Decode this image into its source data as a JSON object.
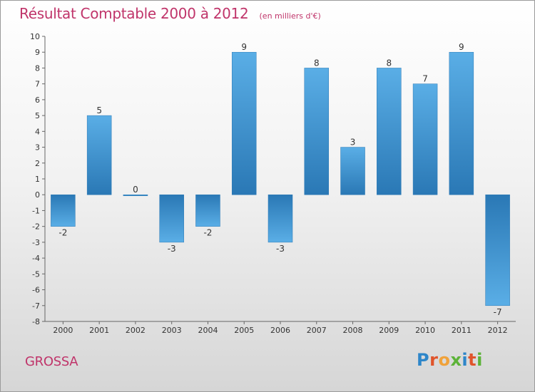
{
  "chart_data": {
    "type": "bar",
    "title": "Résultat Comptable 2000 à 2012",
    "subtitle": "(en milliers d'€)",
    "categories": [
      "2000",
      "2001",
      "2002",
      "2003",
      "2004",
      "2005",
      "2006",
      "2007",
      "2008",
      "2009",
      "2010",
      "2011",
      "2012"
    ],
    "values": [
      -2,
      5,
      0,
      -3,
      -2,
      9,
      -3,
      8,
      3,
      8,
      7,
      9,
      -7
    ],
    "ylim": [
      -8,
      10
    ],
    "yticks": [
      -8,
      -7,
      -6,
      -5,
      -4,
      -3,
      -2,
      -1,
      0,
      1,
      2,
      3,
      4,
      5,
      6,
      7,
      8,
      9,
      10
    ],
    "grid": false,
    "legend": "none",
    "colors": {
      "bar_light": "#5aaee6",
      "bar_dark": "#2a78b5",
      "title": "#c0346a"
    }
  },
  "footer": {
    "commune": "GROSSA",
    "logo_text": "Proxiti",
    "logo_colors": [
      "#2e86c9",
      "#e0542b",
      "#f0a23a",
      "#5cb338",
      "#2e86c9",
      "#e0542b",
      "#5cb338"
    ]
  }
}
